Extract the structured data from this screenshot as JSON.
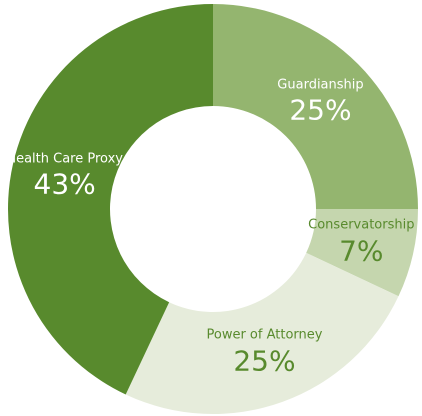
{
  "chart_data": {
    "type": "donut",
    "categories": [
      "Guardianship",
      "Conservatorship",
      "Power of Attorney",
      "Health Care Proxy"
    ],
    "values": [
      25,
      7,
      25,
      43
    ],
    "value_labels": [
      "25%",
      "7%",
      "25%",
      "43%"
    ],
    "colors": [
      "#94b56f",
      "#c5d6ae",
      "#e6ecdb",
      "#588a2d"
    ],
    "label_colors": [
      "#ffffff",
      "#588a2d",
      "#588a2d",
      "#ffffff"
    ]
  }
}
